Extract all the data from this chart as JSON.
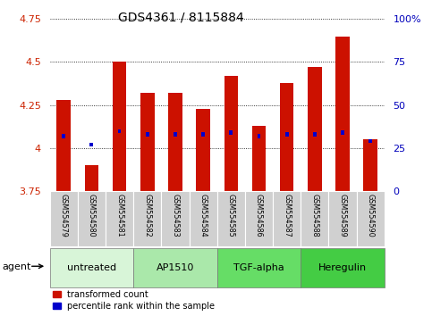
{
  "title": "GDS4361 / 8115884",
  "samples": [
    "GSM554579",
    "GSM554580",
    "GSM554581",
    "GSM554582",
    "GSM554583",
    "GSM554584",
    "GSM554585",
    "GSM554586",
    "GSM554587",
    "GSM554588",
    "GSM554589",
    "GSM554590"
  ],
  "red_values": [
    4.28,
    3.9,
    4.5,
    4.32,
    4.32,
    4.23,
    4.42,
    4.13,
    4.38,
    4.47,
    4.65,
    4.05
  ],
  "blue_values": [
    4.07,
    4.02,
    4.1,
    4.08,
    4.08,
    4.08,
    4.09,
    4.07,
    4.08,
    4.08,
    4.09,
    4.04
  ],
  "bar_bottom": 3.75,
  "ylim_left": [
    3.75,
    4.75
  ],
  "ylim_right": [
    0,
    100
  ],
  "yticks_left": [
    3.75,
    4.0,
    4.25,
    4.5,
    4.75
  ],
  "yticks_right": [
    0,
    25,
    50,
    75,
    100
  ],
  "ytick_labels_left": [
    "3.75",
    "4",
    "4.25",
    "4.5",
    "4.75"
  ],
  "ytick_labels_right": [
    "0",
    "25",
    "50",
    "75",
    "100%"
  ],
  "groups": [
    {
      "label": "untreated",
      "start": 0,
      "end": 3,
      "color": "#d8f5d8"
    },
    {
      "label": "AP1510",
      "start": 3,
      "end": 6,
      "color": "#aae8aa"
    },
    {
      "label": "TGF-alpha",
      "start": 6,
      "end": 9,
      "color": "#66dd66"
    },
    {
      "label": "Heregulin",
      "start": 9,
      "end": 12,
      "color": "#44cc44"
    }
  ],
  "bar_color": "#cc1100",
  "blue_color": "#0000cc",
  "sample_bg": "#d0d0d0",
  "bar_width": 0.5,
  "legend_red": "transformed count",
  "legend_blue": "percentile rank within the sample",
  "title_fontsize": 10,
  "tick_fontsize": 8,
  "label_fontsize": 8
}
